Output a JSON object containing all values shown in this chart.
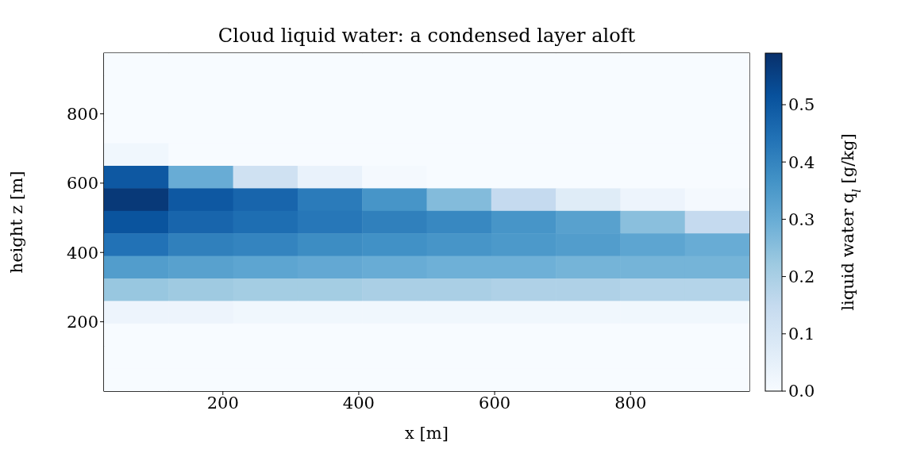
{
  "chart_data": {
    "type": "heatmap",
    "title": "Cloud liquid water: a condensed layer aloft",
    "xlabel": "x [m]",
    "ylabel": "height z [m]",
    "clabel": "liquid water q$_{l}$ [g/kg]",
    "x": [
      72.5,
      167.5,
      262.5,
      357.5,
      452.5,
      547.5,
      642.5,
      737.5,
      832.5,
      927.5
    ],
    "y": [
      942.5,
      877.5,
      812.5,
      747.5,
      682.5,
      617.5,
      552.5,
      487.5,
      422.5,
      357.5,
      292.5,
      227.5,
      162.5,
      97.5,
      32.5
    ],
    "xlim": [
      25,
      975
    ],
    "xticks": [
      200,
      400,
      600,
      800
    ],
    "ylim": [
      0,
      975
    ],
    "yticks": [
      200,
      400,
      600,
      800
    ],
    "clim": [
      0,
      0.59
    ],
    "cticks": [
      {
        "value": 0,
        "label": "0.0"
      },
      0.1,
      0.2,
      0.3,
      0.4,
      0.5
    ],
    "cells": [
      [
        0,
        0,
        0,
        0,
        0,
        0,
        0,
        0,
        0,
        0
      ],
      [
        0,
        0,
        0,
        0,
        0,
        0,
        0,
        0,
        0,
        0
      ],
      [
        0,
        0,
        0,
        0,
        0,
        0,
        0,
        0,
        0,
        0
      ],
      [
        0,
        0,
        0,
        0,
        0,
        0,
        0,
        0,
        0,
        0
      ],
      [
        0.02,
        0,
        0,
        0,
        0,
        0,
        0,
        0,
        0,
        0
      ],
      [
        0.5,
        0.3,
        0.12,
        0.04,
        0.01,
        0,
        0,
        0,
        0,
        0
      ],
      [
        0.57,
        0.5,
        0.47,
        0.42,
        0.36,
        0.26,
        0.15,
        0.07,
        0.03,
        0.01
      ],
      [
        0.51,
        0.47,
        0.45,
        0.43,
        0.41,
        0.39,
        0.36,
        0.33,
        0.25,
        0.15
      ],
      [
        0.44,
        0.41,
        0.4,
        0.38,
        0.37,
        0.36,
        0.35,
        0.34,
        0.32,
        0.3
      ],
      [
        0.34,
        0.33,
        0.32,
        0.31,
        0.3,
        0.29,
        0.29,
        0.28,
        0.28,
        0.28
      ],
      [
        0.23,
        0.22,
        0.21,
        0.21,
        0.2,
        0.2,
        0.19,
        0.19,
        0.18,
        0.18
      ],
      [
        0.03,
        0.03,
        0.02,
        0.02,
        0.02,
        0.02,
        0.02,
        0.02,
        0.02,
        0.02
      ],
      [
        0,
        0,
        0,
        0,
        0,
        0,
        0,
        0,
        0,
        0
      ],
      [
        0,
        0,
        0,
        0,
        0,
        0,
        0,
        0,
        0,
        0
      ],
      [
        0,
        0,
        0,
        0,
        0,
        0,
        0,
        0,
        0,
        0
      ]
    ]
  }
}
